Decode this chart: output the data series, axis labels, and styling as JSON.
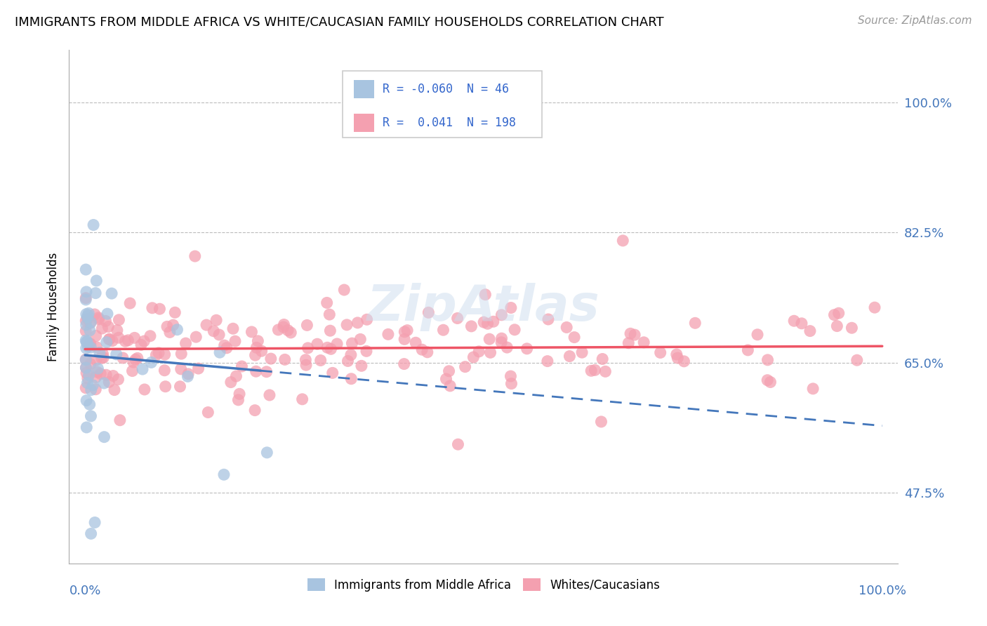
{
  "title": "IMMIGRANTS FROM MIDDLE AFRICA VS WHITE/CAUCASIAN FAMILY HOUSEHOLDS CORRELATION CHART",
  "source": "Source: ZipAtlas.com",
  "ylabel": "Family Households",
  "yticks": [
    0.475,
    0.65,
    0.825,
    1.0
  ],
  "ytick_labels": [
    "47.5%",
    "65.0%",
    "82.5%",
    "100.0%"
  ],
  "xlim": [
    -0.02,
    1.02
  ],
  "ylim": [
    0.38,
    1.07
  ],
  "legend_R1": "-0.060",
  "legend_N1": "46",
  "legend_R2": "0.041",
  "legend_N2": "198",
  "blue_color": "#A8C4E0",
  "pink_color": "#F4A0B0",
  "blue_line_color": "#4477BB",
  "pink_line_color": "#EE5566",
  "background_color": "#FFFFFF",
  "title_fontsize": 13,
  "source_fontsize": 11,
  "blue_seed": 42,
  "pink_seed": 99,
  "blue_line_solid_end": 0.22,
  "blue_line_y0": 0.66,
  "blue_line_y1": 0.565,
  "pink_line_y0": 0.668,
  "pink_line_y1": 0.672,
  "watermark": "ZipAtlas"
}
